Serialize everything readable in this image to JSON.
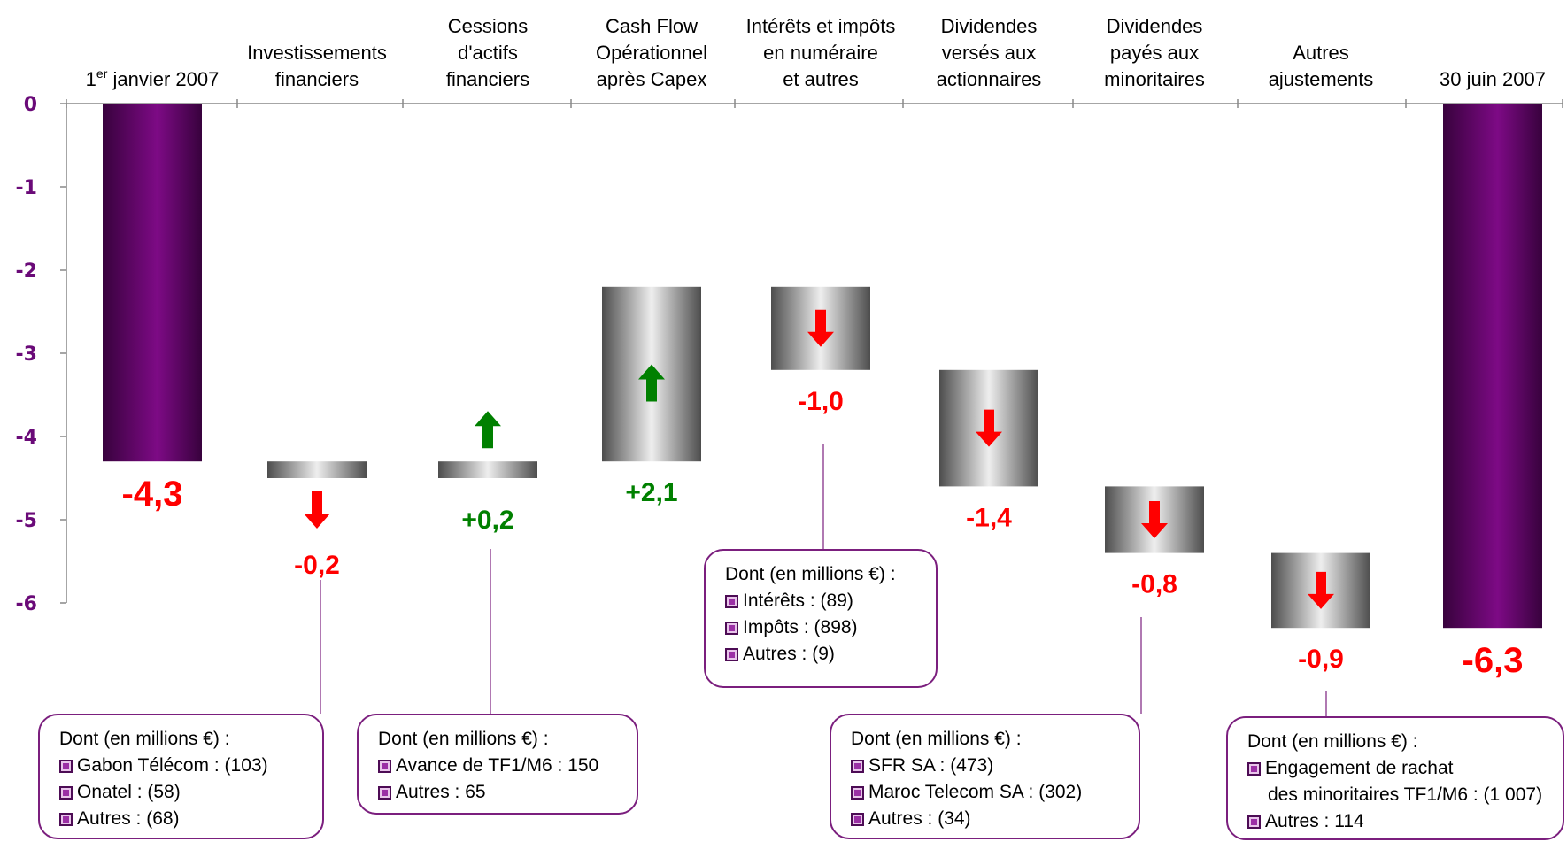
{
  "chart_data": {
    "type": "bar",
    "subtype": "waterfall",
    "ylim": [
      -6.3,
      0
    ],
    "yticks": [
      0,
      -1,
      -2,
      -3,
      -4,
      -5,
      -6
    ],
    "grid": false,
    "colors": {
      "total": "#7a0a7e",
      "step": "#a0a0a0",
      "negative": "#ff0000",
      "positive": "#008000",
      "axis": "#6a0a78"
    },
    "categories": [
      {
        "label_lines": [
          "1er janvier 2007"
        ],
        "superscript": true,
        "kind": "total",
        "start": 0,
        "end": -4.3,
        "value": -4.3,
        "label": "-4,3",
        "direction": "none"
      },
      {
        "label_lines": [
          "Investissements",
          "financiers"
        ],
        "kind": "step",
        "start": -4.3,
        "end": -4.5,
        "value": -0.2,
        "label": "-0,2",
        "direction": "down"
      },
      {
        "label_lines": [
          "Cessions",
          "d'actifs",
          "financiers"
        ],
        "kind": "step",
        "start": -4.5,
        "end": -4.3,
        "value": 0.2,
        "label": "+0,2",
        "direction": "up"
      },
      {
        "label_lines": [
          "Cash Flow",
          "Opérationnel",
          "après Capex"
        ],
        "kind": "step",
        "start": -4.3,
        "end": -2.2,
        "value": 2.1,
        "label": "+2,1",
        "direction": "up"
      },
      {
        "label_lines": [
          "Intérêts et impôts",
          "en numéraire",
          "et autres"
        ],
        "kind": "step",
        "start": -2.2,
        "end": -3.2,
        "value": -1.0,
        "label": "-1,0",
        "direction": "down"
      },
      {
        "label_lines": [
          "Dividendes",
          "versés aux",
          "actionnaires"
        ],
        "kind": "step",
        "start": -3.2,
        "end": -4.6,
        "value": -1.4,
        "label": "-1,4",
        "direction": "down"
      },
      {
        "label_lines": [
          "Dividendes",
          "payés aux",
          "minoritaires"
        ],
        "kind": "step",
        "start": -4.6,
        "end": -5.4,
        "value": -0.8,
        "label": "-0,8",
        "direction": "down"
      },
      {
        "label_lines": [
          "Autres",
          "ajustements"
        ],
        "kind": "step",
        "start": -5.4,
        "end": -6.3,
        "value": -0.9,
        "label": "-0,9",
        "direction": "down"
      },
      {
        "label_lines": [
          "30 juin 2007"
        ],
        "kind": "total",
        "start": 0,
        "end": -6.3,
        "value": -6.3,
        "label": "-6,3",
        "direction": "none"
      }
    ],
    "annotations": [
      {
        "category_index": 1,
        "title": "Dont (en millions €) :",
        "items": [
          [
            "Gabon Télécom : (103)"
          ],
          [
            "Onatel : (58)"
          ],
          [
            "Autres : (68)"
          ]
        ]
      },
      {
        "category_index": 2,
        "title": "Dont (en millions €) :",
        "items": [
          [
            "Avance de TF1/M6 : 150"
          ],
          [
            "Autres : 65"
          ]
        ]
      },
      {
        "category_index": 4,
        "title": "Dont (en millions €) :",
        "items": [
          [
            "Intérêts : (89)"
          ],
          [
            "Impôts : (898)"
          ],
          [
            "Autres : (9)"
          ]
        ]
      },
      {
        "category_index": 6,
        "title": "Dont (en millions €) :",
        "items": [
          [
            "SFR SA : (473)"
          ],
          [
            "Maroc Telecom SA : (302)"
          ],
          [
            "Autres : (34)"
          ]
        ]
      },
      {
        "category_index": 7,
        "title": "Dont (en millions €) :",
        "items": [
          [
            "Engagement de rachat",
            "des minoritaires TF1/M6 : (1 007)"
          ],
          [
            "Autres : 114"
          ]
        ]
      }
    ]
  }
}
